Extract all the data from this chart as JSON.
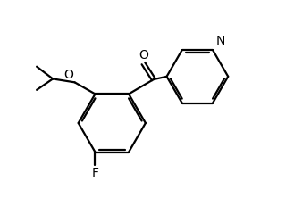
{
  "bg_color": "#ffffff",
  "line_color": "#000000",
  "line_width": 1.6,
  "font_size": 10,
  "figsize": [
    3.29,
    2.4
  ],
  "dpi": 100,
  "xlim": [
    0,
    10
  ],
  "ylim": [
    0,
    7.3
  ]
}
